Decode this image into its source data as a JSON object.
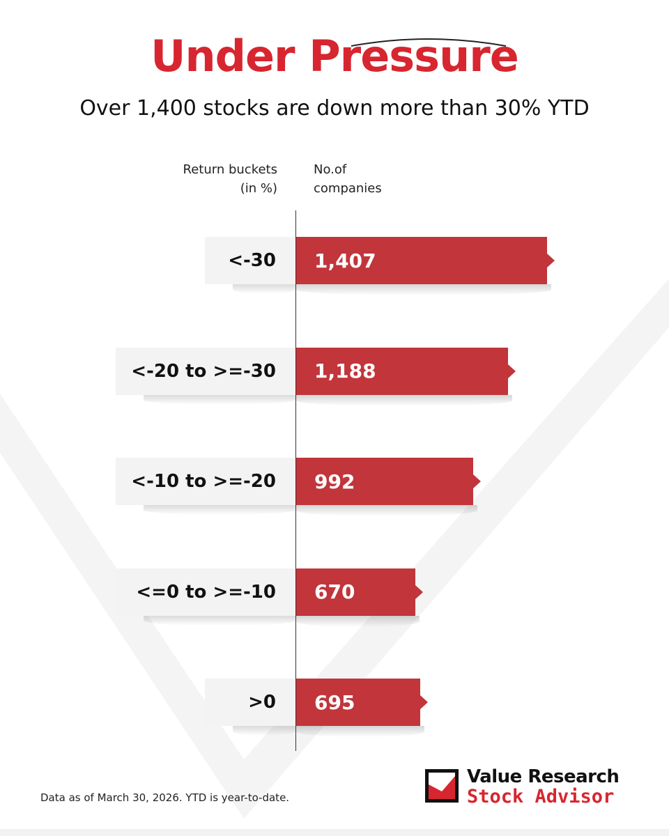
{
  "header": {
    "title": "Under Pressure",
    "subtitle": "Over 1,400 stocks are down more than 30% YTD"
  },
  "columns": {
    "buckets_line1": "Return buckets",
    "buckets_line2": "(in %)",
    "companies_line1": "No.of",
    "companies_line2": "companies"
  },
  "chart_data": {
    "type": "bar",
    "orientation": "horizontal",
    "categories": [
      "<-30",
      "<-20 to >=-30",
      "<-10 to >=-20",
      "<=0 to >=-10",
      ">0"
    ],
    "values": [
      1407,
      1188,
      992,
      670,
      695
    ],
    "value_labels": [
      "1,407",
      "1,188",
      "992",
      "670",
      "695"
    ],
    "title": "Under Pressure",
    "subtitle": "Over 1,400 stocks are down more than 30% YTD",
    "xlabel": "No.of companies",
    "ylabel": "Return buckets (in %)",
    "xlim": [
      0,
      1407
    ],
    "grid": false,
    "legend": "none",
    "bar_color": "#c1353b"
  },
  "footer": {
    "note": "Data as of March 30, 2026. YTD is year-to-date.",
    "brand_line1": "Value Research",
    "brand_line2": "Stock Advisor"
  },
  "colors": {
    "accent": "#d7262f",
    "bar": "#c1353b",
    "label_bg": "#f3f3f3"
  }
}
